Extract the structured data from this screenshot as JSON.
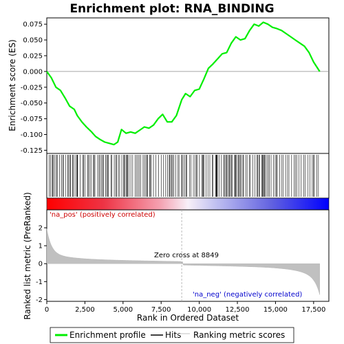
{
  "chart_data": {
    "type": "line",
    "title": "Enrichment plot: RNA_BINDING",
    "xlabel": "Rank in Ordered Dataset",
    "ylabel_top": "Enrichment score (ES)",
    "ylabel_bottom": "Ranked list metric (PreRanked)",
    "xlim": [
      0,
      18500
    ],
    "ylim_top": [
      -0.13,
      0.085
    ],
    "ylim_bottom": [
      -2.1,
      3.0
    ],
    "x_ticks": [
      0,
      2500,
      5000,
      7500,
      10000,
      12500,
      15000,
      17500
    ],
    "x_tick_labels": [
      "0",
      "2,500",
      "5,000",
      "7,500",
      "10,000",
      "12,500",
      "15,000",
      "17,500"
    ],
    "y_ticks_top": [
      0.075,
      0.05,
      0.025,
      0.0,
      -0.025,
      -0.05,
      -0.075,
      -0.1,
      -0.125
    ],
    "y_tick_labels_top": [
      "0.075",
      "0.050",
      "0.025",
      "0.000",
      "-0.025",
      "-0.050",
      "-0.075",
      "-0.100",
      "-0.125"
    ],
    "y_ticks_bottom": [
      2,
      1,
      0,
      -1,
      -2
    ],
    "y_tick_labels_bottom": [
      "2",
      "1",
      "0",
      "-1",
      "-2"
    ],
    "n_genes": 17900,
    "zero_cross": 8849,
    "zero_cross_label": "Zero cross at 8849",
    "pos_label": "'na_pos' (positively correlated)",
    "neg_label": "'na_neg' (negatively correlated)",
    "series": [
      {
        "name": "Enrichment profile",
        "color": "#00ee00",
        "x": [
          0,
          300,
          600,
          900,
          1200,
          1500,
          1800,
          2000,
          2300,
          2600,
          2900,
          3200,
          3500,
          3800,
          4100,
          4400,
          4650,
          4900,
          5200,
          5500,
          5800,
          6100,
          6400,
          6700,
          7000,
          7300,
          7600,
          7900,
          8200,
          8500,
          8849,
          9100,
          9400,
          9700,
          10000,
          10300,
          10600,
          10900,
          11200,
          11500,
          11800,
          12100,
          12400,
          12700,
          13000,
          13300,
          13600,
          13900,
          14200,
          14500,
          14800,
          15100,
          15400,
          15700,
          16000,
          16300,
          16600,
          16900,
          17200,
          17500,
          17900
        ],
        "y": [
          0.0,
          -0.01,
          -0.025,
          -0.03,
          -0.042,
          -0.055,
          -0.06,
          -0.07,
          -0.08,
          -0.088,
          -0.095,
          -0.103,
          -0.108,
          -0.112,
          -0.114,
          -0.116,
          -0.112,
          -0.092,
          -0.098,
          -0.096,
          -0.098,
          -0.093,
          -0.088,
          -0.09,
          -0.085,
          -0.075,
          -0.068,
          -0.08,
          -0.08,
          -0.07,
          -0.045,
          -0.035,
          -0.04,
          -0.03,
          -0.028,
          -0.012,
          0.005,
          0.012,
          0.02,
          0.028,
          0.03,
          0.045,
          0.055,
          0.05,
          0.052,
          0.065,
          0.075,
          0.072,
          0.078,
          0.075,
          0.07,
          0.068,
          0.065,
          0.06,
          0.055,
          0.05,
          0.045,
          0.04,
          0.03,
          0.015,
          0.0
        ]
      },
      {
        "name": "Hits",
        "color": "#000000"
      },
      {
        "name": "Ranking metric scores",
        "color": "#c0c0c0"
      }
    ],
    "legend": {
      "placement": "bottom",
      "entries": [
        "Enrichment profile",
        "Hits",
        "Ranking metric scores"
      ]
    },
    "grid": false
  }
}
